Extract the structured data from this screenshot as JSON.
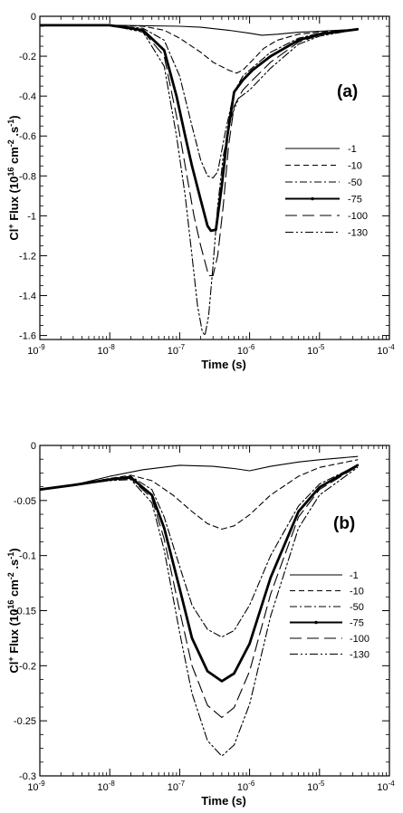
{
  "chart_data": [
    {
      "type": "line",
      "panel_label": "(a)",
      "xlabel": "Time (s)",
      "ylabel_main": "Cl",
      "ylabel_sup1": "+",
      "ylabel_mid": " Flux (10",
      "ylabel_sup2": "16",
      "ylabel_mid2": " cm",
      "ylabel_sup3": "-2",
      "ylabel_mid3": " .s",
      "ylabel_sup4": "-1",
      "ylabel_end": ")",
      "x_scale": "log",
      "xlim": [
        1e-09,
        0.0001
      ],
      "ylim": [
        -1.62,
        0
      ],
      "xticks": [
        {
          "value": 1e-09,
          "base": "10",
          "exp": "-9"
        },
        {
          "value": 1e-08,
          "base": "10",
          "exp": "-8"
        },
        {
          "value": 1e-07,
          "base": "10",
          "exp": "-7"
        },
        {
          "value": 1e-06,
          "base": "10",
          "exp": "-6"
        },
        {
          "value": 1e-05,
          "base": "10",
          "exp": "-5"
        },
        {
          "value": 0.0001,
          "base": "10",
          "exp": "-4"
        }
      ],
      "yticks": [
        {
          "value": 0,
          "label": "0"
        },
        {
          "value": -0.2,
          "label": "-0.2"
        },
        {
          "value": -0.4,
          "label": "-0.4"
        },
        {
          "value": -0.6,
          "label": "-0.6"
        },
        {
          "value": -0.8,
          "label": "-0.8"
        },
        {
          "value": -1.0,
          "label": "-1"
        },
        {
          "value": -1.2,
          "label": "-1.2"
        },
        {
          "value": -1.4,
          "label": "-1.4"
        },
        {
          "value": -1.6,
          "label": "-1.6"
        }
      ],
      "legend_position": "right-middle",
      "series": [
        {
          "name": "-1",
          "style": "solid",
          "points": [
            [
              1e-09,
              -0.045
            ],
            [
              1e-08,
              -0.045
            ],
            [
              1e-07,
              -0.05
            ],
            [
              2e-07,
              -0.055
            ],
            [
              5e-07,
              -0.07
            ],
            [
              1e-06,
              -0.085
            ],
            [
              1.5e-06,
              -0.095
            ],
            [
              2.5e-06,
              -0.09
            ],
            [
              5e-06,
              -0.08
            ],
            [
              1e-05,
              -0.075
            ],
            [
              3.5e-05,
              -0.065
            ]
          ]
        },
        {
          "name": "-10",
          "style": "dashed",
          "points": [
            [
              1e-09,
              -0.045
            ],
            [
              1e-08,
              -0.045
            ],
            [
              3e-08,
              -0.05
            ],
            [
              6e-08,
              -0.07
            ],
            [
              1e-07,
              -0.11
            ],
            [
              2e-07,
              -0.18
            ],
            [
              3e-07,
              -0.23
            ],
            [
              5e-07,
              -0.27
            ],
            [
              6.5e-07,
              -0.285
            ],
            [
              8e-07,
              -0.27
            ],
            [
              1.1e-06,
              -0.22
            ],
            [
              1.6e-06,
              -0.16
            ],
            [
              2.5e-06,
              -0.12
            ],
            [
              5e-06,
              -0.09
            ],
            [
              1e-05,
              -0.08
            ],
            [
              3.5e-05,
              -0.065
            ]
          ]
        },
        {
          "name": "-50",
          "style": "dashdot",
          "points": [
            [
              1e-09,
              -0.045
            ],
            [
              1e-08,
              -0.045
            ],
            [
              3e-08,
              -0.06
            ],
            [
              6e-08,
              -0.12
            ],
            [
              1e-07,
              -0.3
            ],
            [
              1.5e-07,
              -0.55
            ],
            [
              2e-07,
              -0.72
            ],
            [
              2.5e-07,
              -0.8
            ],
            [
              3e-07,
              -0.81
            ],
            [
              3.5e-07,
              -0.78
            ],
            [
              4.5e-07,
              -0.58
            ],
            [
              6e-07,
              -0.38
            ],
            [
              8e-07,
              -0.3
            ],
            [
              1e-06,
              -0.27
            ],
            [
              2e-06,
              -0.18
            ],
            [
              5e-06,
              -0.11
            ],
            [
              1e-05,
              -0.085
            ],
            [
              3.5e-05,
              -0.065
            ]
          ]
        },
        {
          "name": "-75",
          "style": "thick",
          "points": [
            [
              1e-09,
              -0.045
            ],
            [
              1e-08,
              -0.045
            ],
            [
              3e-08,
              -0.07
            ],
            [
              6e-08,
              -0.17
            ],
            [
              9e-08,
              -0.4
            ],
            [
              1.2e-07,
              -0.6
            ],
            [
              1.5e-07,
              -0.75
            ],
            [
              2e-07,
              -0.92
            ],
            [
              2.5e-07,
              -1.05
            ],
            [
              2.8e-07,
              -1.075
            ],
            [
              3.3e-07,
              -1.07
            ],
            [
              4e-07,
              -0.85
            ],
            [
              4.8e-07,
              -0.6
            ],
            [
              6e-07,
              -0.38
            ],
            [
              8e-07,
              -0.32
            ],
            [
              1.1e-06,
              -0.27
            ],
            [
              2e-06,
              -0.2
            ],
            [
              5e-06,
              -0.12
            ],
            [
              1e-05,
              -0.09
            ],
            [
              3.5e-05,
              -0.065
            ]
          ]
        },
        {
          "name": "-100",
          "style": "longdash",
          "points": [
            [
              1e-09,
              -0.045
            ],
            [
              1e-08,
              -0.045
            ],
            [
              3e-08,
              -0.075
            ],
            [
              6e-08,
              -0.2
            ],
            [
              9e-08,
              -0.5
            ],
            [
              1.2e-07,
              -0.75
            ],
            [
              1.6e-07,
              -1.0
            ],
            [
              2e-07,
              -1.15
            ],
            [
              2.6e-07,
              -1.3
            ],
            [
              3e-07,
              -1.3
            ],
            [
              3.5e-07,
              -1.2
            ],
            [
              4.2e-07,
              -0.95
            ],
            [
              5e-07,
              -0.65
            ],
            [
              6e-07,
              -0.45
            ],
            [
              8e-07,
              -0.37
            ],
            [
              1.1e-06,
              -0.32
            ],
            [
              2e-06,
              -0.23
            ],
            [
              5e-06,
              -0.13
            ],
            [
              1e-05,
              -0.095
            ],
            [
              3.5e-05,
              -0.065
            ]
          ]
        },
        {
          "name": "-130",
          "style": "dashdotdot",
          "points": [
            [
              1e-09,
              -0.045
            ],
            [
              1e-08,
              -0.045
            ],
            [
              3e-08,
              -0.08
            ],
            [
              6e-08,
              -0.25
            ],
            [
              9e-08,
              -0.6
            ],
            [
              1.2e-07,
              -0.9
            ],
            [
              1.5e-07,
              -1.2
            ],
            [
              1.8e-07,
              -1.45
            ],
            [
              2.1e-07,
              -1.58
            ],
            [
              2.3e-07,
              -1.6
            ],
            [
              2.6e-07,
              -1.5
            ],
            [
              3e-07,
              -1.25
            ],
            [
              3.5e-07,
              -0.95
            ],
            [
              4.2e-07,
              -0.7
            ],
            [
              5.5e-07,
              -0.5
            ],
            [
              7e-07,
              -0.41
            ],
            [
              1e-06,
              -0.37
            ],
            [
              2e-06,
              -0.26
            ],
            [
              5e-06,
              -0.14
            ],
            [
              1e-05,
              -0.1
            ],
            [
              3.5e-05,
              -0.065
            ]
          ]
        }
      ]
    },
    {
      "type": "line",
      "panel_label": "(b)",
      "xlabel": "Time (s)",
      "ylabel_main": "Cl",
      "ylabel_sup1": "+",
      "ylabel_mid": " Flux (10",
      "ylabel_sup2": "16",
      "ylabel_mid2": " cm",
      "ylabel_sup3": "-2",
      "ylabel_mid3": " .s",
      "ylabel_sup4": "-1",
      "ylabel_end": ")",
      "x_scale": "log",
      "xlim": [
        1e-09,
        0.0001
      ],
      "ylim": [
        -0.3,
        0
      ],
      "xticks": [
        {
          "value": 1e-09,
          "base": "10",
          "exp": "-9"
        },
        {
          "value": 1e-08,
          "base": "10",
          "exp": "-8"
        },
        {
          "value": 1e-07,
          "base": "10",
          "exp": "-7"
        },
        {
          "value": 1e-06,
          "base": "10",
          "exp": "-6"
        },
        {
          "value": 1e-05,
          "base": "10",
          "exp": "-5"
        },
        {
          "value": 0.0001,
          "base": "10",
          "exp": "-4"
        }
      ],
      "yticks": [
        {
          "value": 0,
          "label": "0"
        },
        {
          "value": -0.05,
          "label": "-0.05"
        },
        {
          "value": -0.1,
          "label": "-0.1"
        },
        {
          "value": -0.15,
          "label": "-0.15"
        },
        {
          "value": -0.2,
          "label": "-0.2"
        },
        {
          "value": -0.25,
          "label": "-0.25"
        },
        {
          "value": -0.3,
          "label": "-0.3"
        }
      ],
      "legend_position": "right-middle",
      "series": [
        {
          "name": "-1",
          "style": "solid",
          "points": [
            [
              1e-09,
              -0.04
            ],
            [
              3e-09,
              -0.036
            ],
            [
              1e-08,
              -0.028
            ],
            [
              3e-08,
              -0.022
            ],
            [
              1e-07,
              -0.018
            ],
            [
              3e-07,
              -0.019
            ],
            [
              6e-07,
              -0.021
            ],
            [
              1e-06,
              -0.023
            ],
            [
              2e-06,
              -0.019
            ],
            [
              5e-06,
              -0.015
            ],
            [
              1e-05,
              -0.013
            ],
            [
              3.5e-05,
              -0.01
            ]
          ]
        },
        {
          "name": "-10",
          "style": "dashed",
          "points": [
            [
              1e-09,
              -0.04
            ],
            [
              3e-09,
              -0.036
            ],
            [
              1e-08,
              -0.03
            ],
            [
              2e-08,
              -0.027
            ],
            [
              4e-08,
              -0.032
            ],
            [
              8e-08,
              -0.045
            ],
            [
              1.5e-07,
              -0.06
            ],
            [
              2.5e-07,
              -0.071
            ],
            [
              4e-07,
              -0.076
            ],
            [
              6e-07,
              -0.073
            ],
            [
              1e-06,
              -0.063
            ],
            [
              2e-06,
              -0.045
            ],
            [
              5e-06,
              -0.028
            ],
            [
              1e-05,
              -0.02
            ],
            [
              3.5e-05,
              -0.013
            ]
          ]
        },
        {
          "name": "-50",
          "style": "dashdot",
          "points": [
            [
              1e-09,
              -0.04
            ],
            [
              3e-09,
              -0.036
            ],
            [
              1e-08,
              -0.03
            ],
            [
              2e-08,
              -0.028
            ],
            [
              4e-08,
              -0.04
            ],
            [
              6e-08,
              -0.065
            ],
            [
              1e-07,
              -0.11
            ],
            [
              1.5e-07,
              -0.145
            ],
            [
              2.5e-07,
              -0.167
            ],
            [
              4e-07,
              -0.174
            ],
            [
              6e-07,
              -0.168
            ],
            [
              1e-06,
              -0.145
            ],
            [
              2e-06,
              -0.1
            ],
            [
              5e-06,
              -0.055
            ],
            [
              1e-05,
              -0.035
            ],
            [
              3.5e-05,
              -0.018
            ]
          ]
        },
        {
          "name": "-75",
          "style": "thick",
          "points": [
            [
              1e-09,
              -0.04
            ],
            [
              3e-09,
              -0.036
            ],
            [
              1e-08,
              -0.031
            ],
            [
              2e-08,
              -0.029
            ],
            [
              4e-08,
              -0.045
            ],
            [
              6e-08,
              -0.075
            ],
            [
              1e-07,
              -0.13
            ],
            [
              1.5e-07,
              -0.175
            ],
            [
              2.5e-07,
              -0.205
            ],
            [
              4e-07,
              -0.214
            ],
            [
              6e-07,
              -0.207
            ],
            [
              1e-06,
              -0.18
            ],
            [
              2e-06,
              -0.12
            ],
            [
              5e-06,
              -0.06
            ],
            [
              1e-05,
              -0.038
            ],
            [
              3.5e-05,
              -0.018
            ]
          ]
        },
        {
          "name": "-100",
          "style": "longdash",
          "points": [
            [
              1e-09,
              -0.04
            ],
            [
              3e-09,
              -0.036
            ],
            [
              1e-08,
              -0.031
            ],
            [
              2e-08,
              -0.03
            ],
            [
              4e-08,
              -0.048
            ],
            [
              6e-08,
              -0.085
            ],
            [
              1e-07,
              -0.15
            ],
            [
              1.5e-07,
              -0.2
            ],
            [
              2.5e-07,
              -0.236
            ],
            [
              4e-07,
              -0.247
            ],
            [
              6e-07,
              -0.238
            ],
            [
              1e-06,
              -0.205
            ],
            [
              2e-06,
              -0.135
            ],
            [
              5e-06,
              -0.065
            ],
            [
              1e-05,
              -0.04
            ],
            [
              3.5e-05,
              -0.019
            ]
          ]
        },
        {
          "name": "-130",
          "style": "dashdotdot",
          "points": [
            [
              1e-09,
              -0.04
            ],
            [
              3e-09,
              -0.036
            ],
            [
              1e-08,
              -0.032
            ],
            [
              2e-08,
              -0.031
            ],
            [
              4e-08,
              -0.052
            ],
            [
              6e-08,
              -0.095
            ],
            [
              1e-07,
              -0.17
            ],
            [
              1.5e-07,
              -0.225
            ],
            [
              2.5e-07,
              -0.268
            ],
            [
              4e-07,
              -0.282
            ],
            [
              6e-07,
              -0.272
            ],
            [
              1e-06,
              -0.235
            ],
            [
              2e-06,
              -0.155
            ],
            [
              5e-06,
              -0.075
            ],
            [
              1e-05,
              -0.045
            ],
            [
              3.5e-05,
              -0.02
            ]
          ]
        }
      ]
    }
  ]
}
